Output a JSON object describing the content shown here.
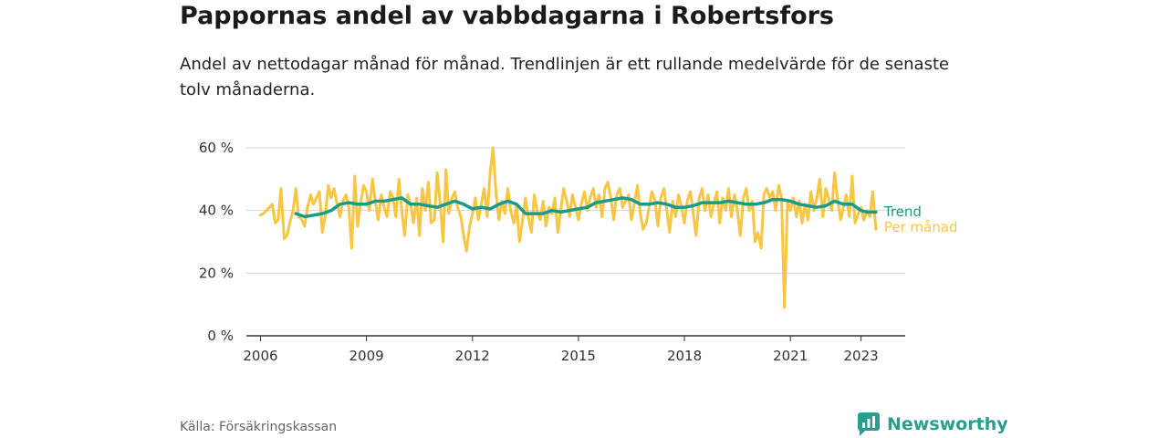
{
  "title": "Pappornas andel av vabbdagarna i Robertsfors",
  "subtitle": "Andel av nettodagar månad för månad. Trendlinjen är ett rullande medelvärde för de senaste tolv månaderna.",
  "source": "Källa: Försäkringskassan",
  "brand": {
    "name": "Newsworthy",
    "icon": "newsworthy-logo-icon",
    "color": "#2a9d8f"
  },
  "chart_data": {
    "type": "line",
    "x_unit": "year",
    "y_unit": "%",
    "ylim": [
      0,
      60
    ],
    "y_ticks": [
      0,
      20,
      40,
      60
    ],
    "y_tick_labels": [
      "0 %",
      "20 %",
      "40 %",
      "60 %"
    ],
    "x_ticks": [
      2006,
      2009,
      2012,
      2015,
      2018,
      2021,
      2023
    ],
    "x_tick_labels": [
      "2006",
      "2009",
      "2012",
      "2015",
      "2018",
      "2021",
      "2023"
    ],
    "grid": true,
    "series": [
      {
        "name": "Per månad",
        "color": "#f9c543",
        "points": [
          [
            2006.0,
            38.5
          ],
          [
            2006.08,
            39
          ],
          [
            2006.17,
            40
          ],
          [
            2006.25,
            41
          ],
          [
            2006.33,
            42
          ],
          [
            2006.42,
            36
          ],
          [
            2006.5,
            37
          ],
          [
            2006.58,
            47
          ],
          [
            2006.67,
            31
          ],
          [
            2006.75,
            32
          ],
          [
            2006.83,
            36
          ],
          [
            2006.92,
            40
          ],
          [
            2007.0,
            47
          ],
          [
            2007.08,
            38
          ],
          [
            2007.17,
            37
          ],
          [
            2007.25,
            35
          ],
          [
            2007.33,
            41
          ],
          [
            2007.42,
            45
          ],
          [
            2007.5,
            42
          ],
          [
            2007.58,
            44
          ],
          [
            2007.67,
            46
          ],
          [
            2007.75,
            33
          ],
          [
            2007.83,
            38
          ],
          [
            2007.92,
            48
          ],
          [
            2008.0,
            44
          ],
          [
            2008.08,
            47
          ],
          [
            2008.17,
            42
          ],
          [
            2008.25,
            38
          ],
          [
            2008.33,
            43
          ],
          [
            2008.42,
            45
          ],
          [
            2008.5,
            41
          ],
          [
            2008.58,
            28
          ],
          [
            2008.67,
            51
          ],
          [
            2008.75,
            35
          ],
          [
            2008.83,
            42
          ],
          [
            2008.92,
            48
          ],
          [
            2009.0,
            46
          ],
          [
            2009.08,
            40
          ],
          [
            2009.17,
            50
          ],
          [
            2009.25,
            43
          ],
          [
            2009.33,
            37
          ],
          [
            2009.42,
            45
          ],
          [
            2009.5,
            41
          ],
          [
            2009.58,
            38
          ],
          [
            2009.67,
            46
          ],
          [
            2009.75,
            44
          ],
          [
            2009.83,
            38
          ],
          [
            2009.92,
            50
          ],
          [
            2010.0,
            40
          ],
          [
            2010.08,
            32
          ],
          [
            2010.17,
            45
          ],
          [
            2010.25,
            42
          ],
          [
            2010.33,
            36
          ],
          [
            2010.42,
            44
          ],
          [
            2010.5,
            32
          ],
          [
            2010.58,
            47
          ],
          [
            2010.67,
            40
          ],
          [
            2010.75,
            49
          ],
          [
            2010.83,
            36
          ],
          [
            2010.92,
            37
          ],
          [
            2011.0,
            52
          ],
          [
            2011.08,
            43
          ],
          [
            2011.17,
            30
          ],
          [
            2011.25,
            53
          ],
          [
            2011.33,
            39
          ],
          [
            2011.42,
            44
          ],
          [
            2011.5,
            46
          ],
          [
            2011.58,
            41
          ],
          [
            2011.67,
            38
          ],
          [
            2011.75,
            32
          ],
          [
            2011.83,
            27
          ],
          [
            2011.92,
            35
          ],
          [
            2012.0,
            39
          ],
          [
            2012.08,
            44
          ],
          [
            2012.17,
            37
          ],
          [
            2012.25,
            42
          ],
          [
            2012.33,
            47
          ],
          [
            2012.42,
            38
          ],
          [
            2012.5,
            52
          ],
          [
            2012.58,
            60
          ],
          [
            2012.67,
            45
          ],
          [
            2012.75,
            37
          ],
          [
            2012.83,
            43
          ],
          [
            2012.92,
            39
          ],
          [
            2013.0,
            47
          ],
          [
            2013.08,
            40
          ],
          [
            2013.17,
            36
          ],
          [
            2013.25,
            42
          ],
          [
            2013.33,
            30
          ],
          [
            2013.42,
            37
          ],
          [
            2013.5,
            44
          ],
          [
            2013.58,
            38
          ],
          [
            2013.67,
            33
          ],
          [
            2013.75,
            45
          ],
          [
            2013.83,
            40
          ],
          [
            2013.92,
            37
          ],
          [
            2014.0,
            43
          ],
          [
            2014.08,
            35
          ],
          [
            2014.17,
            41
          ],
          [
            2014.25,
            39
          ],
          [
            2014.33,
            44
          ],
          [
            2014.42,
            33
          ],
          [
            2014.5,
            40
          ],
          [
            2014.58,
            47
          ],
          [
            2014.67,
            43
          ],
          [
            2014.75,
            38
          ],
          [
            2014.83,
            45
          ],
          [
            2014.92,
            41
          ],
          [
            2015.0,
            37
          ],
          [
            2015.08,
            42
          ],
          [
            2015.17,
            46
          ],
          [
            2015.25,
            40
          ],
          [
            2015.33,
            44
          ],
          [
            2015.42,
            47
          ],
          [
            2015.5,
            41
          ],
          [
            2015.58,
            45
          ],
          [
            2015.67,
            38
          ],
          [
            2015.75,
            47
          ],
          [
            2015.83,
            49
          ],
          [
            2015.92,
            44
          ],
          [
            2016.0,
            37
          ],
          [
            2016.08,
            45
          ],
          [
            2016.17,
            47
          ],
          [
            2016.25,
            41
          ],
          [
            2016.33,
            43
          ],
          [
            2016.42,
            45
          ],
          [
            2016.5,
            37
          ],
          [
            2016.58,
            42
          ],
          [
            2016.67,
            48
          ],
          [
            2016.75,
            39
          ],
          [
            2016.83,
            34
          ],
          [
            2016.92,
            36
          ],
          [
            2017.0,
            41
          ],
          [
            2017.08,
            46
          ],
          [
            2017.17,
            43
          ],
          [
            2017.25,
            35
          ],
          [
            2017.33,
            44
          ],
          [
            2017.42,
            47
          ],
          [
            2017.5,
            40
          ],
          [
            2017.58,
            33
          ],
          [
            2017.67,
            43
          ],
          [
            2017.75,
            38
          ],
          [
            2017.83,
            45
          ],
          [
            2017.92,
            41
          ],
          [
            2018.0,
            36
          ],
          [
            2018.08,
            43
          ],
          [
            2018.17,
            46
          ],
          [
            2018.25,
            39
          ],
          [
            2018.33,
            32
          ],
          [
            2018.42,
            44
          ],
          [
            2018.5,
            47
          ],
          [
            2018.58,
            40
          ],
          [
            2018.67,
            45
          ],
          [
            2018.75,
            38
          ],
          [
            2018.83,
            42
          ],
          [
            2018.92,
            46
          ],
          [
            2019.0,
            36
          ],
          [
            2019.08,
            44
          ],
          [
            2019.17,
            40
          ],
          [
            2019.25,
            47
          ],
          [
            2019.33,
            38
          ],
          [
            2019.42,
            45
          ],
          [
            2019.5,
            40
          ],
          [
            2019.58,
            32
          ],
          [
            2019.67,
            44
          ],
          [
            2019.75,
            47
          ],
          [
            2019.83,
            40
          ],
          [
            2019.92,
            43
          ],
          [
            2020.0,
            30
          ],
          [
            2020.08,
            33
          ],
          [
            2020.17,
            28
          ],
          [
            2020.25,
            45
          ],
          [
            2020.33,
            47
          ],
          [
            2020.42,
            44
          ],
          [
            2020.5,
            46
          ],
          [
            2020.58,
            40
          ],
          [
            2020.67,
            48
          ],
          [
            2020.75,
            44
          ],
          [
            2020.83,
            9
          ],
          [
            2020.92,
            43
          ],
          [
            2021.0,
            40
          ],
          [
            2021.08,
            44
          ],
          [
            2021.17,
            38
          ],
          [
            2021.25,
            43
          ],
          [
            2021.33,
            36
          ],
          [
            2021.42,
            42
          ],
          [
            2021.5,
            37
          ],
          [
            2021.58,
            46
          ],
          [
            2021.67,
            40
          ],
          [
            2021.75,
            44
          ],
          [
            2021.83,
            50
          ],
          [
            2021.92,
            38
          ],
          [
            2022.0,
            47
          ],
          [
            2022.08,
            44
          ],
          [
            2022.17,
            40
          ],
          [
            2022.25,
            52
          ],
          [
            2022.33,
            44
          ],
          [
            2022.42,
            37
          ],
          [
            2022.5,
            41
          ],
          [
            2022.58,
            45
          ],
          [
            2022.67,
            38
          ],
          [
            2022.75,
            51
          ],
          [
            2022.83,
            36
          ],
          [
            2022.92,
            39
          ],
          [
            2023.0,
            41
          ],
          [
            2023.08,
            37
          ],
          [
            2023.17,
            40
          ],
          [
            2023.25,
            38
          ],
          [
            2023.33,
            46
          ],
          [
            2023.42,
            34
          ]
        ]
      },
      {
        "name": "Trend",
        "color": "#1a9a8a",
        "points": [
          [
            2007.0,
            39
          ],
          [
            2007.25,
            38
          ],
          [
            2007.5,
            38.5
          ],
          [
            2007.75,
            39
          ],
          [
            2008.0,
            40
          ],
          [
            2008.25,
            42
          ],
          [
            2008.5,
            42.5
          ],
          [
            2008.75,
            42
          ],
          [
            2009.0,
            42
          ],
          [
            2009.25,
            43
          ],
          [
            2009.5,
            43
          ],
          [
            2009.75,
            43.5
          ],
          [
            2010.0,
            44
          ],
          [
            2010.25,
            42
          ],
          [
            2010.5,
            42
          ],
          [
            2010.75,
            41.5
          ],
          [
            2011.0,
            41
          ],
          [
            2011.25,
            42
          ],
          [
            2011.5,
            43
          ],
          [
            2011.75,
            42
          ],
          [
            2012.0,
            40.5
          ],
          [
            2012.25,
            41
          ],
          [
            2012.5,
            40.5
          ],
          [
            2012.75,
            42
          ],
          [
            2013.0,
            43
          ],
          [
            2013.25,
            42
          ],
          [
            2013.5,
            39
          ],
          [
            2013.75,
            39
          ],
          [
            2014.0,
            39
          ],
          [
            2014.25,
            40
          ],
          [
            2014.5,
            39.5
          ],
          [
            2014.75,
            40
          ],
          [
            2015.0,
            40.5
          ],
          [
            2015.25,
            41
          ],
          [
            2015.5,
            42.5
          ],
          [
            2015.75,
            43
          ],
          [
            2016.0,
            43.5
          ],
          [
            2016.25,
            44
          ],
          [
            2016.5,
            43.5
          ],
          [
            2016.75,
            42
          ],
          [
            2017.0,
            42
          ],
          [
            2017.25,
            42.5
          ],
          [
            2017.5,
            42
          ],
          [
            2017.75,
            41
          ],
          [
            2018.0,
            41
          ],
          [
            2018.25,
            41.5
          ],
          [
            2018.5,
            42.5
          ],
          [
            2018.75,
            42.5
          ],
          [
            2019.0,
            42.5
          ],
          [
            2019.25,
            43
          ],
          [
            2019.5,
            42.5
          ],
          [
            2019.75,
            42
          ],
          [
            2020.0,
            42
          ],
          [
            2020.25,
            42.5
          ],
          [
            2020.5,
            43.5
          ],
          [
            2020.75,
            43.5
          ],
          [
            2021.0,
            43
          ],
          [
            2021.25,
            42
          ],
          [
            2021.5,
            41.5
          ],
          [
            2021.75,
            41
          ],
          [
            2022.0,
            41.5
          ],
          [
            2022.25,
            43
          ],
          [
            2022.5,
            42
          ],
          [
            2022.75,
            42
          ],
          [
            2023.0,
            40
          ],
          [
            2023.17,
            39.5
          ],
          [
            2023.33,
            39.5
          ],
          [
            2023.42,
            39.5
          ]
        ]
      }
    ]
  }
}
